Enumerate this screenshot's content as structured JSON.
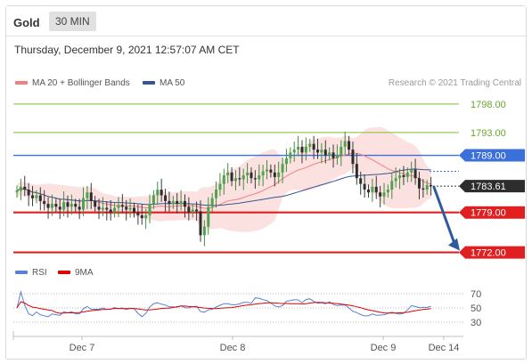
{
  "header": {
    "instrument": "Gold",
    "timeframe": "30 MIN"
  },
  "datetime": "Thursday, December 9, 2021 12:57:07 AM CET",
  "legend": {
    "items": [
      {
        "label": "MA 20 + Bollinger Bands",
        "color": "#f08080"
      },
      {
        "label": "MA 50",
        "color": "#34578f"
      }
    ],
    "research": "Research © 2021 Trading Central"
  },
  "rsi_legend": {
    "items": [
      {
        "label": "RSI",
        "color": "#5a7fd6"
      },
      {
        "label": "9MA",
        "color": "#e00000"
      }
    ]
  },
  "levels": [
    {
      "label": "1798.00",
      "value": 1798.0,
      "style": "resistance-thin",
      "color": "#7cbf3a"
    },
    {
      "label": "1793.00",
      "value": 1793.0,
      "style": "resistance-thin",
      "color": "#7cbf3a"
    },
    {
      "label": "1789.00",
      "value": 1789.0,
      "style": "pivot",
      "color": "#3b6fd9"
    },
    {
      "label": "1783.61",
      "value": 1783.61,
      "style": "last",
      "color": "#2d2d2d"
    },
    {
      "label": "1779.00",
      "value": 1779.0,
      "style": "support",
      "color": "#e02020"
    },
    {
      "label": "1772.00",
      "value": 1772.0,
      "style": "support",
      "color": "#e02020"
    }
  ],
  "rsi_levels": [
    "70",
    "50",
    "30"
  ],
  "x_ticks": [
    "Dec 7",
    "Dec 8",
    "Dec 9",
    "Dec 14"
  ],
  "chart_data": {
    "type": "candlestick",
    "title": "Gold",
    "timeframe": "30 MIN",
    "ylim": [
      1771,
      1800
    ],
    "last_price": 1783.61,
    "arrow": {
      "from": 1783.61,
      "to": 1772.0
    },
    "closes": [
      1782.8,
      1783.5,
      1783.0,
      1782.0,
      1781.5,
      1782.0,
      1781.0,
      1780.5,
      1779.8,
      1780.5,
      1780.0,
      1779.5,
      1780.8,
      1780.0,
      1780.5,
      1780.0,
      1779.5,
      1781.5,
      1782.5,
      1781.0,
      1780.0,
      1779.5,
      1779.8,
      1779.5,
      1779.0,
      1779.8,
      1780.3,
      1780.0,
      1779.5,
      1779.8,
      1779.0,
      1778.5,
      1778.0,
      1778.5,
      1780.5,
      1782.0,
      1783.0,
      1782.0,
      1781.0,
      1780.5,
      1781.0,
      1780.5,
      1781.0,
      1780.0,
      1779.0,
      1779.5,
      1779.2,
      1775.0,
      1776.5,
      1780.0,
      1781.5,
      1783.0,
      1784.0,
      1785.5,
      1786.0,
      1784.5,
      1785.0,
      1784.8,
      1785.5,
      1786.0,
      1785.0,
      1784.8,
      1785.5,
      1786.2,
      1786.5,
      1786.0,
      1785.2,
      1786.0,
      1787.5,
      1788.5,
      1789.5,
      1790.0,
      1790.5,
      1789.5,
      1790.5,
      1791.0,
      1790.0,
      1789.5,
      1790.0,
      1789.0,
      1789.5,
      1788.5,
      1789.0,
      1790.5,
      1791.5,
      1790.0,
      1787.5,
      1785.0,
      1784.0,
      1783.0,
      1782.5,
      1783.5,
      1782.5,
      1781.8,
      1782.5,
      1783.0,
      1784.5,
      1785.0,
      1785.5,
      1785.2,
      1786.0,
      1786.5,
      1785.0,
      1783.2,
      1783.0,
      1783.8,
      1783.61
    ],
    "rsi_ylim": [
      20,
      80
    ]
  }
}
